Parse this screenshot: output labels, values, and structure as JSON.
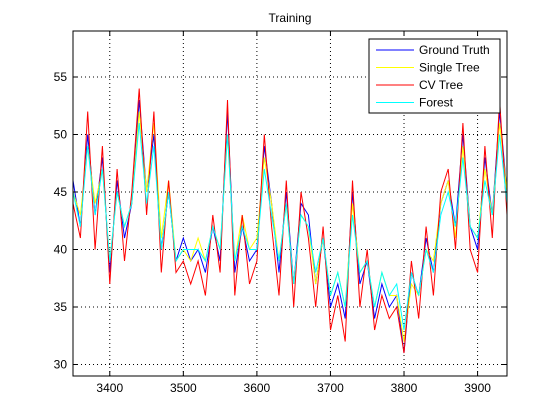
{
  "chart_data": {
    "type": "line",
    "title": "Training",
    "xlabel": "",
    "ylabel": "",
    "xlim": [
      3350,
      3940
    ],
    "ylim": [
      29,
      59
    ],
    "xticks": [
      3400,
      3500,
      3600,
      3700,
      3800,
      3900
    ],
    "yticks": [
      30,
      35,
      40,
      45,
      50,
      55
    ],
    "grid": true,
    "legend_position": "top-right",
    "colors": {
      "ground_truth": "#0000ff",
      "single_tree": "#ffff00",
      "cv_tree": "#ff0000",
      "forest": "#00ffff"
    },
    "x": [
      3350,
      3360,
      3370,
      3380,
      3390,
      3400,
      3410,
      3420,
      3430,
      3440,
      3450,
      3460,
      3470,
      3480,
      3490,
      3500,
      3510,
      3520,
      3530,
      3540,
      3550,
      3560,
      3570,
      3580,
      3590,
      3600,
      3610,
      3620,
      3630,
      3640,
      3650,
      3660,
      3670,
      3680,
      3690,
      3700,
      3710,
      3720,
      3730,
      3740,
      3750,
      3760,
      3770,
      3780,
      3790,
      3800,
      3810,
      3820,
      3830,
      3840,
      3850,
      3860,
      3870,
      3880,
      3890,
      3900,
      3910,
      3920,
      3930,
      3940
    ],
    "series": [
      {
        "name": "Ground Truth",
        "color": "#0000ff",
        "values": [
          46,
          42,
          50,
          43,
          48,
          38,
          46,
          41,
          44,
          53,
          45,
          50,
          40,
          45,
          39,
          41,
          39,
          40,
          38,
          42,
          39,
          52,
          38,
          42,
          39,
          40,
          49,
          44,
          38,
          45,
          37,
          44,
          43,
          37,
          41,
          35,
          37,
          34,
          45,
          37,
          39,
          34,
          37,
          35,
          36,
          31,
          38,
          36,
          41,
          38,
          44,
          46,
          42,
          50,
          42,
          40,
          48,
          43,
          52,
          45
        ]
      },
      {
        "name": "Single Tree",
        "color": "#ffff00",
        "values": [
          45,
          43,
          49,
          44,
          47,
          39,
          45,
          42,
          44,
          52,
          45,
          51,
          41,
          46,
          39,
          40,
          39,
          41,
          39,
          42,
          40,
          50,
          39,
          43,
          40,
          41,
          48,
          44,
          39,
          44,
          37,
          43,
          42,
          37,
          41,
          36,
          38,
          35,
          44,
          38,
          39,
          35,
          38,
          36,
          36,
          32,
          37,
          36,
          40,
          39,
          44,
          46,
          41,
          49,
          42,
          41,
          47,
          43,
          51,
          45
        ]
      },
      {
        "name": "CV Tree",
        "color": "#ff0000",
        "values": [
          44,
          41,
          52,
          40,
          49,
          37,
          47,
          39,
          45,
          54,
          43,
          52,
          38,
          46,
          38,
          39,
          37,
          39,
          36,
          43,
          38,
          53,
          36,
          43,
          37,
          39,
          50,
          42,
          36,
          46,
          35,
          45,
          41,
          35,
          42,
          33,
          36,
          32,
          46,
          35,
          40,
          33,
          36,
          34,
          35,
          31,
          39,
          34,
          42,
          36,
          45,
          47,
          40,
          51,
          40,
          38,
          49,
          41,
          53,
          43
        ]
      },
      {
        "name": "Forest",
        "color": "#00ffff",
        "values": [
          45,
          42,
          49,
          43,
          47,
          39,
          45,
          42,
          44,
          51,
          44,
          49,
          40,
          45,
          39,
          40,
          40,
          40,
          39,
          42,
          40,
          50,
          39,
          42,
          40,
          40,
          47,
          43,
          39,
          44,
          37,
          43,
          42,
          38,
          41,
          36,
          38,
          35,
          43,
          38,
          39,
          35,
          38,
          36,
          37,
          33,
          38,
          36,
          40,
          38,
          43,
          45,
          42,
          48,
          42,
          41,
          46,
          43,
          50,
          44
        ]
      }
    ]
  }
}
